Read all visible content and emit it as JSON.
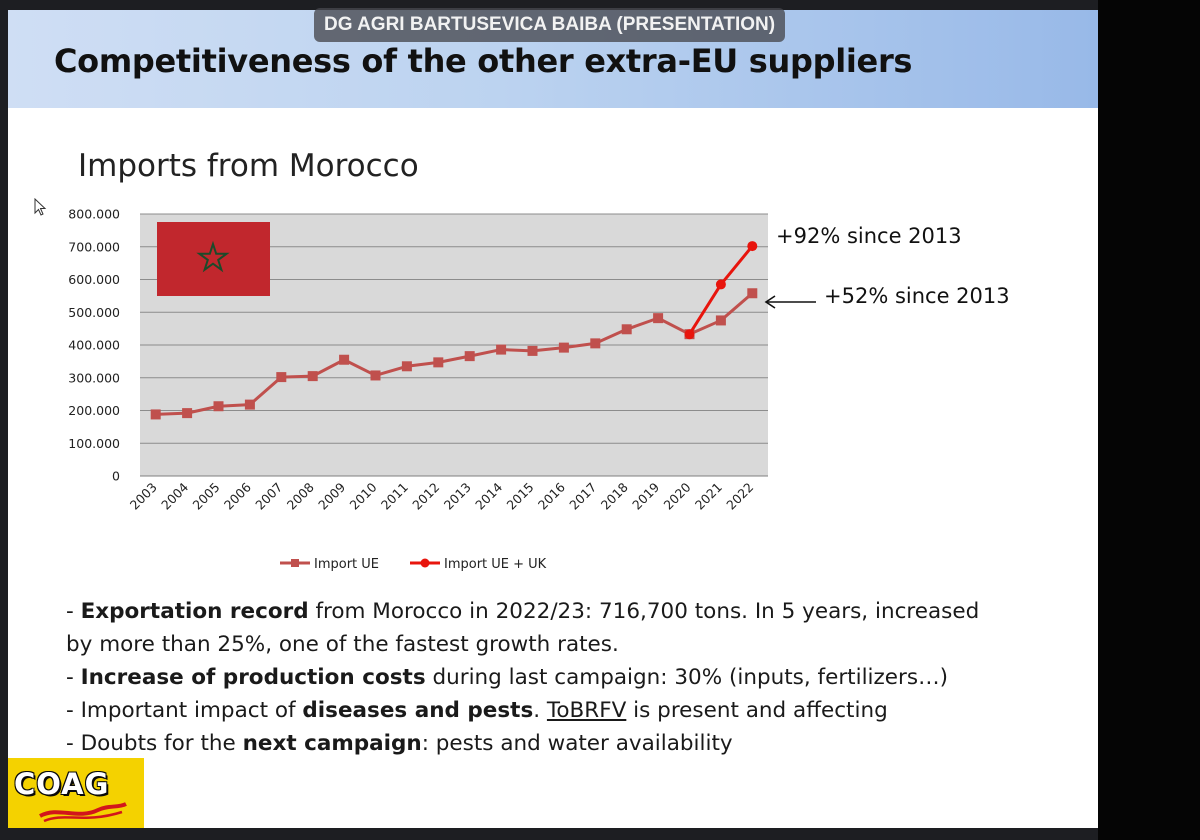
{
  "presenter_tag": "DG AGRI BARTUSEVICA BAIBA (PRESENTATION)",
  "slide": {
    "title": "Competitiveness of the other extra-EU suppliers",
    "subtitle": "Imports from Morocco"
  },
  "annotations": {
    "uk_growth": "+92% since 2013",
    "eu_growth": "+52% since 2013"
  },
  "chart_data": {
    "type": "line",
    "title": "Imports from Morocco",
    "xlabel": "",
    "ylabel": "",
    "ylim": [
      0,
      800000
    ],
    "yticks": [
      "0",
      "100.000",
      "200.000",
      "300.000",
      "400.000",
      "500.000",
      "600.000",
      "700.000",
      "800.000"
    ],
    "categories": [
      "2003",
      "2004",
      "2005",
      "2006",
      "2007",
      "2008",
      "2009",
      "2010",
      "2011",
      "2012",
      "2013",
      "2014",
      "2015",
      "2016",
      "2017",
      "2018",
      "2019",
      "2020",
      "2021",
      "2022"
    ],
    "series": [
      {
        "name": "Import UE",
        "color": "#c0504d",
        "marker": "square",
        "values": [
          188000,
          192000,
          213000,
          218000,
          302000,
          305000,
          355000,
          307000,
          335000,
          347000,
          366000,
          386000,
          382000,
          392000,
          405000,
          448000,
          482000,
          433000,
          475000,
          558000
        ]
      },
      {
        "name": "Import UE + UK",
        "color": "#e8150d",
        "marker": "circle",
        "values": [
          null,
          null,
          null,
          null,
          null,
          null,
          null,
          null,
          null,
          null,
          null,
          null,
          null,
          null,
          null,
          null,
          null,
          433000,
          585000,
          702000
        ]
      }
    ],
    "legend_position": "bottom",
    "grid": true
  },
  "bullets": [
    {
      "prefix": "- ",
      "bold": "Exportation record",
      "rest": " from Morocco in 2022/23: 716,700 tons. In 5 years, increased"
    },
    {
      "prefix": "",
      "bold": "",
      "rest": "by more than 25%, one of the fastest growth rates."
    },
    {
      "prefix": "- ",
      "bold": "Increase of production costs",
      "rest": " during last campaign: 30% (inputs, fertilizers…)"
    },
    {
      "prefix": "- Important impact of ",
      "bold": "diseases and pests",
      "rest": ". ",
      "underline": "ToBRFV",
      "tail": " is present and affecting"
    },
    {
      "prefix": "- Doubts for the ",
      "bold": "next campaign",
      "rest": ": pests and water availability"
    }
  ],
  "logo": {
    "text": "COAG"
  },
  "colors": {
    "series_eu": "#c0504d",
    "series_uk": "#e8150d",
    "plot_bg": "#d9d9d9",
    "flag_red": "#c1272d",
    "flag_star": "#006233",
    "logo_bg": "#f4d200"
  }
}
